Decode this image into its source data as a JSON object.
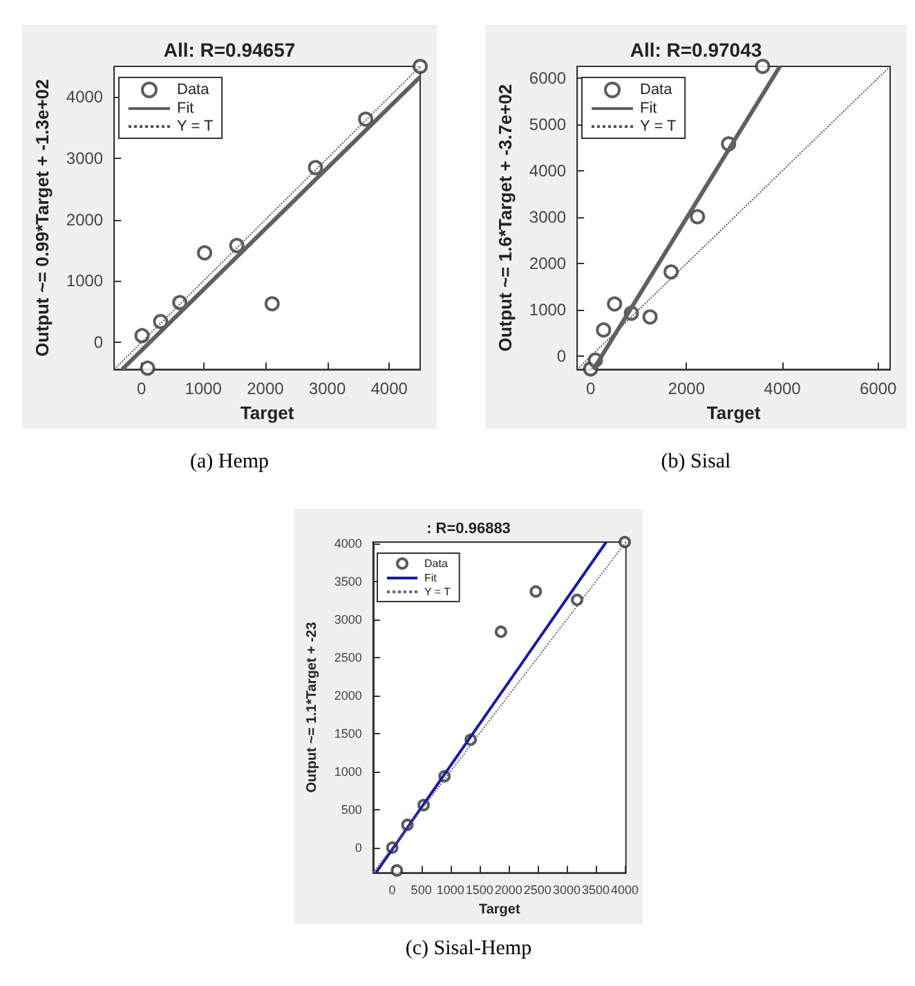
{
  "chart_data": [
    {
      "type": "scatter",
      "title": "All: R=0.94657",
      "xlabel": "Target",
      "ylabel": "Output ~= 0.99*Target + -1.3e+02",
      "annotations": [
        "(a) Hemp"
      ],
      "xlim": [
        -440,
        4500
      ],
      "ylim": [
        -440,
        4500
      ],
      "xticks": [
        0,
        1000,
        2000,
        3000,
        4000
      ],
      "yticks": [
        0,
        1000,
        2000,
        3000,
        4000
      ],
      "grid": false,
      "legend": "top left",
      "series": [
        {
          "name": "Data",
          "type": "scatter",
          "marker": "circle",
          "color": "#333333",
          "x": [
            10,
            100,
            310,
            620,
            1020,
            1540,
            2110,
            2810,
            3620,
            4500
          ],
          "values": [
            110,
            -420,
            340,
            650,
            1460,
            1580,
            630,
            2850,
            3640,
            4500
          ]
        },
        {
          "name": "Fit",
          "type": "line",
          "line_style": "solid",
          "color": "#606060",
          "x": [
            -310,
            4500
          ],
          "values": [
            -440,
            4330
          ]
        },
        {
          "name": "Y = T",
          "type": "line",
          "line_style": "dotted",
          "color": "#555555",
          "x": [
            -440,
            4500
          ],
          "values": [
            -440,
            4500
          ]
        }
      ]
    },
    {
      "type": "scatter",
      "title": "All: R=0.97043",
      "xlabel": "Target",
      "ylabel": "Output ~= 1.6*Target + -3.7e+02",
      "annotations": [
        "(b) Sisal"
      ],
      "xlim": [
        -280,
        6250
      ],
      "ylim": [
        -280,
        6250
      ],
      "xticks": [
        0,
        2000,
        4000,
        6000
      ],
      "yticks": [
        0,
        1000,
        2000,
        3000,
        4000,
        5000,
        6000
      ],
      "grid": false,
      "legend": "top left",
      "series": [
        {
          "name": "Data",
          "type": "scatter",
          "marker": "circle",
          "color": "#333333",
          "x": [
            0,
            100,
            270,
            500,
            850,
            1240,
            1680,
            2230,
            2880,
            3590
          ],
          "values": [
            -270,
            -80,
            570,
            1130,
            930,
            850,
            1820,
            3010,
            4580,
            6250
          ]
        },
        {
          "name": "Fit",
          "type": "line",
          "line_style": "solid",
          "color": "#606060",
          "x": [
            60,
            3950
          ],
          "values": [
            -280,
            6250
          ]
        },
        {
          "name": "Y = T",
          "type": "line",
          "line_style": "dotted",
          "color": "#555555",
          "x": [
            -280,
            6250
          ],
          "values": [
            -280,
            6250
          ]
        }
      ]
    },
    {
      "type": "scatter",
      "title": ": R=0.96883",
      "xlabel": "Target",
      "ylabel": "Output ~= 1.1*Target + -23",
      "annotations": [
        "(c) Sisal-Hemp"
      ],
      "xlim": [
        -330,
        4020
      ],
      "ylim": [
        -330,
        4020
      ],
      "xticks": [
        0,
        500,
        1000,
        1500,
        2000,
        2500,
        3000,
        3500,
        4000
      ],
      "yticks": [
        0,
        500,
        1000,
        1500,
        2000,
        2500,
        3000,
        3500,
        4000
      ],
      "grid": false,
      "legend": "top left",
      "series": [
        {
          "name": "Data",
          "type": "scatter",
          "marker": "circle",
          "color": "#333333",
          "x": [
            0,
            80,
            260,
            540,
            900,
            1350,
            1870,
            2470,
            3180,
            4000
          ],
          "values": [
            0,
            -300,
            300,
            560,
            940,
            1420,
            2840,
            3370,
            3260,
            4020
          ]
        },
        {
          "name": "Fit",
          "type": "line",
          "line_style": "solid",
          "color": "#1a1aa0",
          "x": [
            -280,
            3680
          ],
          "values": [
            -330,
            4020
          ]
        },
        {
          "name": "Y = T",
          "type": "line",
          "line_style": "dotted",
          "color": "#666666",
          "x": [
            -330,
            4020
          ],
          "values": [
            -330,
            4020
          ]
        }
      ]
    }
  ]
}
